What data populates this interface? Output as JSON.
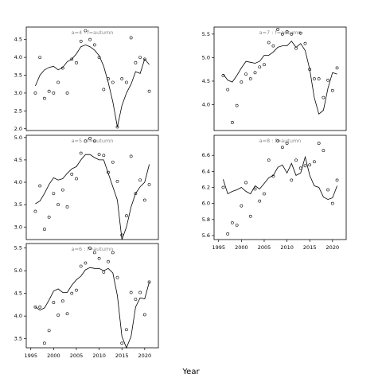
{
  "chart_data": [
    {
      "type": "scatter",
      "panel_label": "a=4 : f=autumn",
      "xlim": [
        1994,
        2023
      ],
      "ylim": [
        1.95,
        4.85
      ],
      "yticks": [
        "2.0",
        "2.5",
        "3.0",
        "3.5",
        "4.0",
        "4.5"
      ],
      "ytick_values": [
        2.0,
        2.5,
        3.0,
        3.5,
        4.0,
        4.5
      ],
      "x_tick_labels_shown": false,
      "points": {
        "x": [
          1996,
          1997,
          1998,
          1999,
          2000,
          2001,
          2002,
          2003,
          2004,
          2005,
          2006,
          2007,
          2008,
          2009,
          2010,
          2011,
          2012,
          2013,
          2014,
          2015,
          2016,
          2017,
          2018,
          2019,
          2020,
          2021
        ],
        "y": [
          3.0,
          4.0,
          2.85,
          3.05,
          3.0,
          3.3,
          3.7,
          3.0,
          3.95,
          3.85,
          4.45,
          4.75,
          4.5,
          4.35,
          4.0,
          3.1,
          3.4,
          3.3,
          2.05,
          3.4,
          3.3,
          4.55,
          3.85,
          4.0,
          3.95,
          3.05
        ]
      },
      "line": {
        "x": [
          1996,
          1997,
          1998,
          1999,
          2000,
          2001,
          2002,
          2003,
          2004,
          2005,
          2006,
          2007,
          2008,
          2009,
          2010,
          2011,
          2012,
          2013,
          2014,
          2015,
          2016,
          2017,
          2018,
          2019,
          2020,
          2021
        ],
        "y": [
          3.2,
          3.5,
          3.65,
          3.72,
          3.75,
          3.65,
          3.72,
          3.88,
          3.95,
          4.1,
          4.3,
          4.35,
          4.3,
          4.2,
          4.05,
          3.75,
          3.3,
          2.75,
          2.05,
          2.65,
          3.0,
          3.25,
          3.6,
          3.55,
          3.95,
          3.8
        ]
      }
    },
    {
      "type": "scatter",
      "panel_label": "a=5 : f=autumn",
      "xlim": [
        1994,
        2023
      ],
      "ylim": [
        2.72,
        5.05
      ],
      "yticks": [
        "3.0",
        "3.5",
        "4.0",
        "4.5",
        "5.0"
      ],
      "ytick_values": [
        3.0,
        3.5,
        4.0,
        4.5,
        5.0
      ],
      "x_tick_labels_shown": false,
      "points": {
        "x": [
          1996,
          1997,
          1998,
          1999,
          2000,
          2001,
          2002,
          2003,
          2004,
          2005,
          2006,
          2007,
          2008,
          2009,
          2010,
          2011,
          2012,
          2013,
          2014,
          2015,
          2016,
          2017,
          2018,
          2019,
          2020,
          2021
        ],
        "y": [
          3.35,
          3.92,
          2.95,
          3.22,
          3.75,
          3.5,
          3.83,
          3.45,
          4.18,
          4.08,
          4.65,
          4.92,
          4.98,
          4.92,
          4.62,
          4.6,
          4.22,
          4.45,
          4.02,
          2.82,
          3.25,
          4.58,
          3.75,
          4.05,
          3.6,
          3.95
        ]
      },
      "line": {
        "x": [
          1996,
          1997,
          1998,
          1999,
          2000,
          2001,
          2002,
          2003,
          2004,
          2005,
          2006,
          2007,
          2008,
          2009,
          2010,
          2011,
          2012,
          2013,
          2014,
          2015,
          2016,
          2017,
          2018,
          2019,
          2020,
          2021
        ],
        "y": [
          3.52,
          3.58,
          3.75,
          3.95,
          4.1,
          4.05,
          4.08,
          4.2,
          4.3,
          4.35,
          4.5,
          4.62,
          4.62,
          4.55,
          4.5,
          4.5,
          4.2,
          3.9,
          3.6,
          2.72,
          3.0,
          3.45,
          3.75,
          3.9,
          4.0,
          4.4
        ]
      }
    },
    {
      "type": "scatter",
      "panel_label": "a=6 : f=autumn",
      "xlim": [
        1994,
        2023
      ],
      "ylim": [
        3.3,
        5.6
      ],
      "yticks": [
        "3.5",
        "4.0",
        "4.5",
        "5.0",
        "5.5"
      ],
      "ytick_values": [
        3.5,
        4.0,
        4.5,
        5.0,
        5.5
      ],
      "x_tick_labels_shown": true,
      "xticks": [
        "1995",
        "2000",
        "2005",
        "2010",
        "2015",
        "2020"
      ],
      "xtick_values": [
        1995,
        2000,
        2005,
        2010,
        2015,
        2020
      ],
      "points": {
        "x": [
          1996,
          1997,
          1998,
          1999,
          2000,
          2001,
          2002,
          2003,
          2004,
          2005,
          2006,
          2007,
          2008,
          2009,
          2010,
          2011,
          2012,
          2013,
          2014,
          2015,
          2016,
          2017,
          2018,
          2019,
          2020,
          2021
        ],
        "y": [
          4.2,
          4.2,
          3.4,
          3.68,
          4.3,
          4.02,
          4.33,
          4.05,
          4.5,
          4.57,
          5.1,
          5.17,
          5.5,
          5.4,
          5.27,
          4.97,
          5.2,
          5.4,
          4.85,
          3.4,
          3.7,
          4.52,
          4.37,
          4.52,
          4.03,
          4.75
        ]
      },
      "line": {
        "x": [
          1996,
          1997,
          1998,
          1999,
          2000,
          2001,
          2002,
          2003,
          2004,
          2005,
          2006,
          2007,
          2008,
          2009,
          2010,
          2011,
          2012,
          2013,
          2014,
          2015,
          2016,
          2017,
          2018,
          2019,
          2020,
          2021
        ],
        "y": [
          4.2,
          4.13,
          4.18,
          4.35,
          4.55,
          4.6,
          4.52,
          4.52,
          4.68,
          4.8,
          4.88,
          5.02,
          5.07,
          5.05,
          5.05,
          5.0,
          5.05,
          4.95,
          4.45,
          3.55,
          3.3,
          3.55,
          4.2,
          4.4,
          4.38,
          4.75
        ]
      }
    },
    {
      "type": "scatter",
      "panel_label": "a=7 : f=autumn",
      "xlim": [
        1994,
        2023
      ],
      "ylim": [
        3.45,
        5.65
      ],
      "yticks": [
        "4.0",
        "4.5",
        "5.0",
        "5.5"
      ],
      "ytick_values": [
        4.0,
        4.5,
        5.0,
        5.5
      ],
      "x_tick_labels_shown": false,
      "points": {
        "x": [
          1996,
          1997,
          1998,
          1999,
          2000,
          2001,
          2002,
          2003,
          2004,
          2005,
          2006,
          2007,
          2008,
          2009,
          2010,
          2011,
          2012,
          2013,
          2014,
          2015,
          2016,
          2017,
          2018,
          2019,
          2020,
          2021
        ],
        "y": [
          4.62,
          4.32,
          3.62,
          3.98,
          4.48,
          4.65,
          4.55,
          4.68,
          4.8,
          4.85,
          5.32,
          5.25,
          5.6,
          5.5,
          5.55,
          5.5,
          5.2,
          5.52,
          5.3,
          4.75,
          4.55,
          4.55,
          4.15,
          4.52,
          4.3,
          4.78
        ]
      },
      "line": {
        "x": [
          1996,
          1997,
          1998,
          1999,
          2000,
          2001,
          2002,
          2003,
          2004,
          2005,
          2006,
          2007,
          2008,
          2009,
          2010,
          2011,
          2012,
          2013,
          2014,
          2015,
          2016,
          2017,
          2018,
          2019,
          2020,
          2021
        ],
        "y": [
          4.65,
          4.52,
          4.48,
          4.62,
          4.78,
          4.92,
          4.9,
          4.88,
          4.92,
          5.05,
          5.05,
          5.12,
          5.22,
          5.25,
          5.25,
          5.35,
          5.22,
          5.3,
          5.15,
          4.75,
          4.15,
          3.8,
          3.88,
          4.35,
          4.68,
          4.65
        ]
      }
    },
    {
      "type": "scatter",
      "panel_label": "a=8 : f=autumn",
      "xlim": [
        1994,
        2023
      ],
      "ylim": [
        5.55,
        6.85
      ],
      "yticks": [
        "5.6",
        "5.8",
        "6.0",
        "6.2",
        "6.4",
        "6.6"
      ],
      "ytick_values": [
        5.6,
        5.8,
        6.0,
        6.2,
        6.4,
        6.6
      ],
      "x_tick_labels_shown": true,
      "xticks": [
        "1995",
        "2000",
        "2005",
        "2010",
        "2015",
        "2020"
      ],
      "xtick_values": [
        1995,
        2000,
        2005,
        2010,
        2015,
        2020
      ],
      "points": {
        "x": [
          1996,
          1997,
          1998,
          1999,
          2000,
          2001,
          2002,
          2003,
          2004,
          2005,
          2006,
          2007,
          2008,
          2009,
          2010,
          2011,
          2012,
          2013,
          2014,
          2015,
          2016,
          2017,
          2018,
          2019,
          2020,
          2021
        ],
        "y": [
          6.2,
          5.62,
          5.76,
          5.73,
          5.97,
          6.26,
          5.84,
          6.18,
          6.03,
          6.12,
          6.54,
          6.34,
          6.78,
          6.7,
          6.75,
          6.29,
          6.54,
          6.44,
          6.47,
          6.48,
          6.52,
          6.75,
          6.66,
          6.17,
          6.0,
          6.29
        ]
      },
      "line": {
        "x": [
          1996,
          1997,
          1998,
          1999,
          2000,
          2001,
          2002,
          2003,
          2004,
          2005,
          2006,
          2007,
          2008,
          2009,
          2010,
          2011,
          2012,
          2013,
          2014,
          2015,
          2016,
          2017,
          2018,
          2019,
          2020,
          2021
        ],
        "y": [
          6.3,
          6.12,
          6.15,
          6.17,
          6.2,
          6.15,
          6.12,
          6.22,
          6.18,
          6.25,
          6.32,
          6.35,
          6.45,
          6.48,
          6.38,
          6.5,
          6.35,
          6.38,
          6.58,
          6.35,
          6.22,
          6.2,
          6.08,
          6.05,
          6.07,
          6.22
        ]
      }
    }
  ],
  "figure": {
    "xlabel": "Year"
  }
}
